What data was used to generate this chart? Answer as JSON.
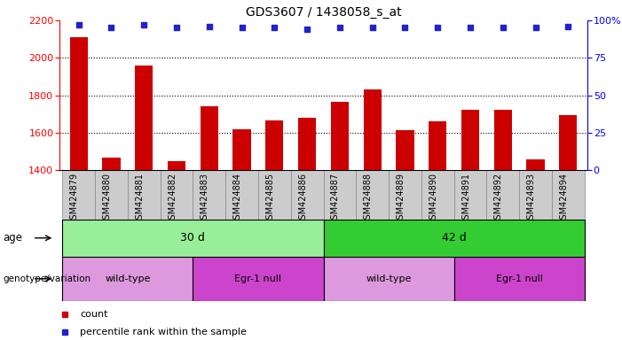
{
  "title": "GDS3607 / 1438058_s_at",
  "samples": [
    "GSM424879",
    "GSM424880",
    "GSM424881",
    "GSM424882",
    "GSM424883",
    "GSM424884",
    "GSM424885",
    "GSM424886",
    "GSM424887",
    "GSM424888",
    "GSM424889",
    "GSM424890",
    "GSM424891",
    "GSM424892",
    "GSM424893",
    "GSM424894"
  ],
  "counts": [
    2110,
    1465,
    1960,
    1445,
    1740,
    1620,
    1665,
    1680,
    1765,
    1830,
    1615,
    1660,
    1720,
    1720,
    1455,
    1695
  ],
  "percentile_ranks": [
    97,
    95,
    97,
    95,
    96,
    95,
    95,
    94,
    95,
    95,
    95,
    95,
    95,
    95,
    95,
    96
  ],
  "ylim_left": [
    1400,
    2200
  ],
  "ylim_right": [
    0,
    100
  ],
  "bar_color": "#cc0000",
  "dot_color": "#2222cc",
  "age_groups": [
    {
      "label": "30 d",
      "start": 0,
      "end": 7,
      "color": "#99ee99"
    },
    {
      "label": "42 d",
      "start": 8,
      "end": 15,
      "color": "#33cc33"
    }
  ],
  "genotype_groups": [
    {
      "label": "wild-type",
      "start": 0,
      "end": 3,
      "color": "#dd99dd"
    },
    {
      "label": "Egr-1 null",
      "start": 4,
      "end": 7,
      "color": "#cc44cc"
    },
    {
      "label": "wild-type",
      "start": 8,
      "end": 11,
      "color": "#dd99dd"
    },
    {
      "label": "Egr-1 null",
      "start": 12,
      "end": 15,
      "color": "#cc44cc"
    }
  ],
  "legend_count_label": "count",
  "legend_pct_label": "percentile rank within the sample",
  "yticks_left": [
    1400,
    1600,
    1800,
    2000,
    2200
  ],
  "yticks_right": [
    0,
    25,
    50,
    75,
    100
  ],
  "age_label": "age",
  "genotype_label": "genotype/variation",
  "tick_bg_color": "#cccccc",
  "tick_border_color": "#888888"
}
